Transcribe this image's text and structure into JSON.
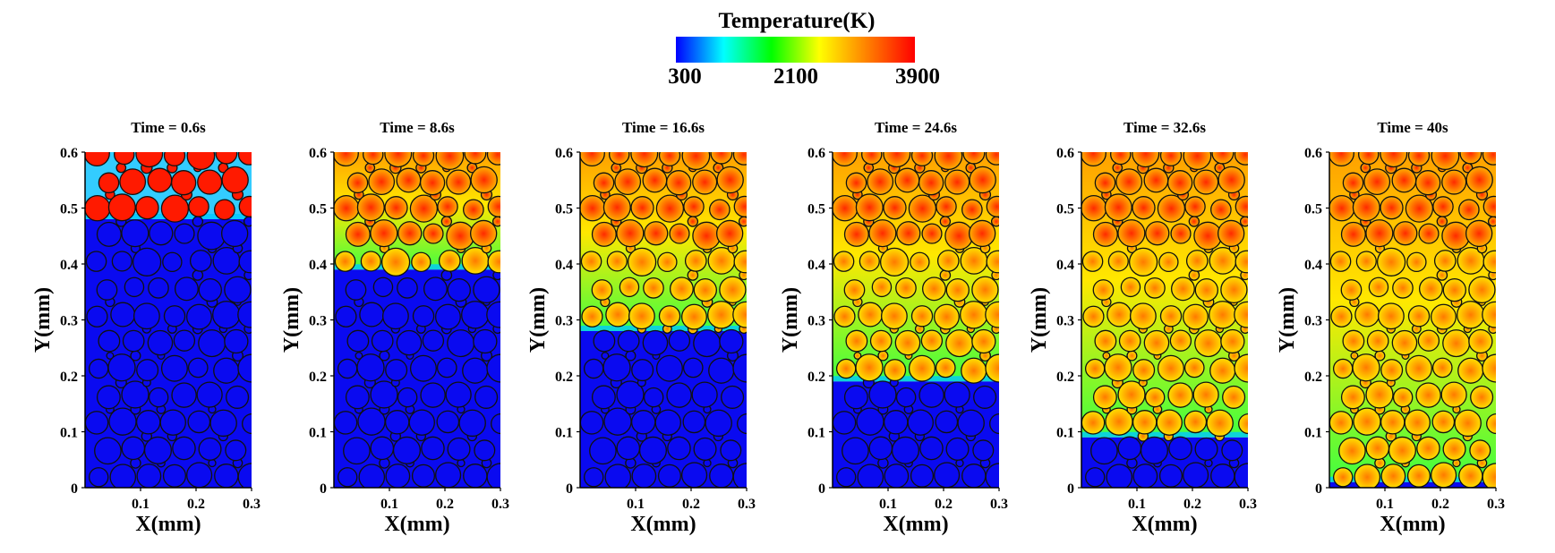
{
  "colorbar": {
    "title": "Temperature(K)",
    "ticks": [
      "300",
      "2100",
      "3900"
    ],
    "min": 300,
    "max": 3900,
    "colors": [
      "#0000ff",
      "#00ffff",
      "#00ff00",
      "#ffff00",
      "#ff8000",
      "#ff0000"
    ]
  },
  "axes": {
    "xlabel": "X(mm)",
    "ylabel": "Y(mm)",
    "xticks": [
      "0.1",
      "0.2",
      "0.3"
    ],
    "yticks": [
      "0",
      "0.1",
      "0.2",
      "0.3",
      "0.4",
      "0.5",
      "0.6"
    ],
    "xlim": [
      0,
      0.3
    ],
    "ylim": [
      0,
      0.6
    ]
  },
  "panels": [
    {
      "title": "Time = 0.6s",
      "melt_front_mm": 0.48,
      "top_temp_K": 3900
    },
    {
      "title": "Time = 8.6s",
      "melt_front_mm": 0.39,
      "top_temp_K": 2400
    },
    {
      "title": "Time = 16.6s",
      "melt_front_mm": 0.28,
      "top_temp_K": 2700
    },
    {
      "title": "Time = 24.6s",
      "melt_front_mm": 0.19,
      "top_temp_K": 2800
    },
    {
      "title": "Time = 32.6s",
      "melt_front_mm": 0.09,
      "top_temp_K": 2900
    },
    {
      "title": "Time = 40s",
      "melt_front_mm": 0.01,
      "top_temp_K": 2900
    }
  ]
}
